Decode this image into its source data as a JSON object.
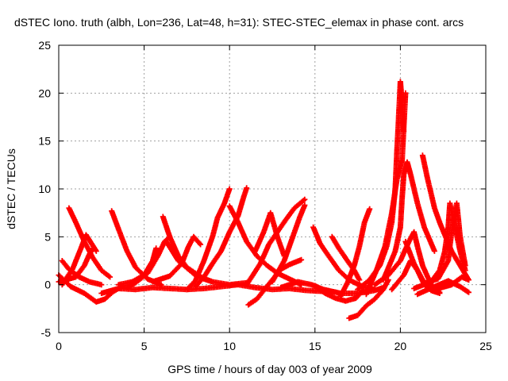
{
  "chart_data": {
    "type": "scatter",
    "title": "dSTEC Iono. truth (albh, Lon=236, Lat=48, h=31): STEC-STEC_elemax in phase cont. arcs",
    "xlabel": "GPS time / hours of day 003 of year 2009",
    "ylabel": "dSTEC  / TECUs",
    "xlim": [
      0,
      25
    ],
    "ylim": [
      -5,
      25
    ],
    "x_ticks": [
      "0",
      "5",
      "10",
      "15",
      "20",
      "25"
    ],
    "y_ticks": [
      "-5",
      "0",
      "5",
      "10",
      "15",
      "20",
      "25"
    ],
    "grid": true,
    "legend": "none",
    "marker": "+",
    "color": "#ff0000",
    "series": [
      {
        "points": [
          [
            0.6,
            8.0
          ],
          [
            1.0,
            6.5
          ],
          [
            1.5,
            4.5
          ],
          [
            2.0,
            2.8
          ],
          [
            2.5,
            1.5
          ],
          [
            3.0,
            0.8
          ]
        ]
      },
      {
        "points": [
          [
            0.0,
            1.0
          ],
          [
            0.7,
            -0.2
          ],
          [
            1.5,
            -0.9
          ],
          [
            2.2,
            -1.8
          ],
          [
            2.7,
            -1.5
          ],
          [
            3.2,
            -0.7
          ],
          [
            3.8,
            -0.1
          ]
        ]
      },
      {
        "points": [
          [
            0.2,
            2.5
          ],
          [
            0.6,
            1.6
          ],
          [
            1.2,
            0.8
          ],
          [
            1.8,
            0.3
          ],
          [
            2.5,
            0.0
          ]
        ]
      },
      {
        "points": [
          [
            0.2,
            0.0
          ],
          [
            0.8,
            1.6
          ],
          [
            1.3,
            3.8
          ],
          [
            1.6,
            5.2
          ],
          [
            2.2,
            3.5
          ]
        ]
      },
      {
        "points": [
          [
            0.0,
            0.3
          ],
          [
            1.0,
            0.8
          ],
          [
            1.5,
            2.0
          ],
          [
            1.8,
            3.2
          ],
          [
            2.0,
            3.8
          ]
        ]
      },
      {
        "points": [
          [
            3.1,
            7.7
          ],
          [
            3.5,
            5.8
          ],
          [
            4.0,
            3.5
          ],
          [
            4.5,
            1.8
          ],
          [
            5.2,
            0.6
          ],
          [
            6.0,
            0.0
          ]
        ]
      },
      {
        "points": [
          [
            2.5,
            -0.9
          ],
          [
            3.5,
            -0.4
          ],
          [
            4.5,
            -0.5
          ],
          [
            5.5,
            -0.3
          ],
          [
            6.5,
            -0.4
          ],
          [
            7.5,
            -0.5
          ],
          [
            8.5,
            -0.4
          ],
          [
            9.5,
            -0.2
          ],
          [
            10.5,
            0.0
          ],
          [
            11.5,
            -0.3
          ],
          [
            12.5,
            -0.5
          ],
          [
            13.5,
            -0.4
          ],
          [
            14.5,
            -0.6
          ],
          [
            15.5,
            -0.7
          ]
        ]
      },
      {
        "points": [
          [
            3.5,
            0.0
          ],
          [
            4.3,
            0.3
          ],
          [
            5.0,
            1.0
          ],
          [
            5.5,
            2.5
          ],
          [
            5.7,
            3.8
          ]
        ]
      },
      {
        "points": [
          [
            4.0,
            -0.3
          ],
          [
            4.5,
            0.2
          ],
          [
            5.2,
            1.2
          ],
          [
            5.8,
            3.0
          ],
          [
            6.2,
            4.5
          ],
          [
            6.5,
            5.0
          ]
        ]
      },
      {
        "points": [
          [
            6.1,
            7.1
          ],
          [
            6.5,
            5.0
          ],
          [
            7.0,
            3.0
          ],
          [
            7.5,
            1.8
          ],
          [
            8.0,
            1.2
          ],
          [
            8.5,
            0.6
          ],
          [
            9.0,
            0.3
          ]
        ]
      },
      {
        "points": [
          [
            5.5,
            0.3
          ],
          [
            6.5,
            0.9
          ],
          [
            7.2,
            2.2
          ],
          [
            7.6,
            4.0
          ],
          [
            7.9,
            5.0
          ],
          [
            8.3,
            4.2
          ]
        ]
      },
      {
        "points": [
          [
            6.3,
            4.5
          ],
          [
            7.0,
            2.5
          ],
          [
            8.0,
            1.0
          ],
          [
            9.0,
            0.3
          ],
          [
            10.0,
            0.0
          ],
          [
            11.0,
            0.2
          ]
        ]
      },
      {
        "points": [
          [
            7.5,
            -0.5
          ],
          [
            8.0,
            0.4
          ],
          [
            8.5,
            2.5
          ],
          [
            9.0,
            5.0
          ],
          [
            9.3,
            7.0
          ],
          [
            9.7,
            8.5
          ],
          [
            10.0,
            10.0
          ]
        ]
      },
      {
        "points": [
          [
            8.0,
            -0.2
          ],
          [
            8.5,
            0.8
          ],
          [
            9.0,
            2.2
          ],
          [
            9.5,
            3.5
          ],
          [
            10.0,
            5.5
          ],
          [
            10.5,
            7.2
          ],
          [
            10.8,
            9.0
          ],
          [
            11.0,
            10.1
          ]
        ]
      },
      {
        "points": [
          [
            10.0,
            8.2
          ],
          [
            10.5,
            6.5
          ],
          [
            11.0,
            4.5
          ],
          [
            11.6,
            3.0
          ],
          [
            12.2,
            2.0
          ],
          [
            12.8,
            1.2
          ],
          [
            13.5,
            0.6
          ],
          [
            14.2,
            0.0
          ]
        ]
      },
      {
        "points": [
          [
            11.1,
            -2.1
          ],
          [
            11.6,
            -1.5
          ],
          [
            12.0,
            -0.6
          ],
          [
            12.5,
            0.5
          ],
          [
            13.0,
            1.6
          ],
          [
            13.5,
            2.1
          ],
          [
            14.2,
            2.6
          ]
        ]
      },
      {
        "points": [
          [
            11.0,
            0.0
          ],
          [
            11.8,
            2.2
          ],
          [
            12.3,
            4.2
          ],
          [
            12.8,
            5.5
          ],
          [
            13.3,
            6.8
          ],
          [
            13.8,
            8.0
          ],
          [
            14.4,
            8.9
          ]
        ]
      },
      {
        "points": [
          [
            11.5,
            3.5
          ],
          [
            12.0,
            5.5
          ],
          [
            12.4,
            7.5
          ],
          [
            12.8,
            5.0
          ],
          [
            13.2,
            3.0
          ]
        ]
      },
      {
        "points": [
          [
            12.5,
            0.3
          ],
          [
            13.2,
            2.5
          ],
          [
            13.7,
            5.0
          ],
          [
            14.1,
            7.0
          ],
          [
            14.4,
            8.3
          ]
        ]
      },
      {
        "points": [
          [
            13.0,
            -0.3
          ],
          [
            14.0,
            0.3
          ],
          [
            14.8,
            0.0
          ],
          [
            15.5,
            -0.5
          ],
          [
            16.5,
            -0.9
          ],
          [
            17.5,
            -0.9
          ],
          [
            18.5,
            -0.6
          ],
          [
            19.0,
            -0.3
          ]
        ]
      },
      {
        "points": [
          [
            14.9,
            6.0
          ],
          [
            15.3,
            4.3
          ],
          [
            15.8,
            3.0
          ],
          [
            16.4,
            1.5
          ],
          [
            17.0,
            0.5
          ],
          [
            17.8,
            -0.2
          ],
          [
            18.5,
            -0.5
          ]
        ]
      },
      {
        "points": [
          [
            15.0,
            -0.1
          ],
          [
            15.6,
            -0.9
          ],
          [
            16.2,
            -1.4
          ],
          [
            16.8,
            -1.7
          ],
          [
            17.4,
            -1.4
          ],
          [
            17.8,
            -0.6
          ]
        ]
      },
      {
        "points": [
          [
            16.0,
            5.0
          ],
          [
            16.4,
            3.8
          ],
          [
            16.9,
            2.5
          ],
          [
            17.3,
            1.5
          ],
          [
            17.6,
            0.5
          ]
        ]
      },
      {
        "points": [
          [
            16.5,
            -1.2
          ],
          [
            16.9,
            0.2
          ],
          [
            17.3,
            2.0
          ],
          [
            17.6,
            4.0
          ],
          [
            17.9,
            6.5
          ],
          [
            18.2,
            7.9
          ]
        ]
      },
      {
        "points": [
          [
            17.0,
            -3.5
          ],
          [
            17.5,
            -3.2
          ],
          [
            18.0,
            -2.2
          ],
          [
            18.5,
            -1.5
          ],
          [
            19.0,
            -0.5
          ],
          [
            19.3,
            0.5
          ]
        ]
      },
      {
        "points": [
          [
            17.5,
            -0.5
          ],
          [
            18.2,
            0.5
          ],
          [
            18.8,
            2.0
          ],
          [
            19.2,
            4.0
          ],
          [
            19.5,
            6.5
          ],
          [
            19.7,
            10.0
          ],
          [
            19.8,
            14.0
          ],
          [
            19.9,
            17.5
          ],
          [
            20.0,
            21.2
          ],
          [
            20.1,
            19.0
          ],
          [
            20.2,
            16.0
          ]
        ]
      },
      {
        "points": [
          [
            18.0,
            -1.0
          ],
          [
            18.6,
            1.5
          ],
          [
            19.1,
            4.0
          ],
          [
            19.5,
            7.5
          ],
          [
            19.8,
            11.0
          ],
          [
            20.1,
            13.0
          ],
          [
            20.3,
            20.0
          ]
        ]
      },
      {
        "points": [
          [
            19.0,
            0.5
          ],
          [
            19.7,
            3.5
          ],
          [
            20.0,
            6.0
          ],
          [
            20.1,
            9.0
          ],
          [
            20.2,
            11.5
          ],
          [
            20.4,
            12.8
          ],
          [
            20.6,
            11.5
          ],
          [
            21.0,
            8.5
          ],
          [
            21.4,
            6.0
          ],
          [
            22.0,
            3.5
          ]
        ]
      },
      {
        "points": [
          [
            18.5,
            0.0
          ],
          [
            19.3,
            1.0
          ],
          [
            20.0,
            2.5
          ],
          [
            20.5,
            4.5
          ],
          [
            20.8,
            5.5
          ],
          [
            21.0,
            4.0
          ],
          [
            21.3,
            2.0
          ],
          [
            21.8,
            0.0
          ],
          [
            22.3,
            -0.8
          ]
        ]
      },
      {
        "points": [
          [
            19.5,
            -0.5
          ],
          [
            20.2,
            1.0
          ],
          [
            20.6,
            2.5
          ],
          [
            21.0,
            1.5
          ],
          [
            21.4,
            0.0
          ],
          [
            21.8,
            -0.5
          ]
        ]
      },
      {
        "points": [
          [
            20.3,
            4.5
          ],
          [
            20.8,
            2.2
          ],
          [
            21.3,
            0.5
          ],
          [
            21.8,
            -0.6
          ],
          [
            22.3,
            -0.9
          ]
        ]
      },
      {
        "points": [
          [
            21.3,
            13.5
          ],
          [
            21.6,
            11.0
          ],
          [
            22.0,
            8.0
          ],
          [
            22.3,
            6.5
          ],
          [
            22.6,
            5.2
          ],
          [
            23.0,
            3.5
          ],
          [
            23.5,
            2.0
          ],
          [
            24.0,
            0.5
          ]
        ]
      },
      {
        "points": [
          [
            20.8,
            -0.4
          ],
          [
            21.8,
            0.3
          ],
          [
            22.3,
            1.5
          ],
          [
            22.6,
            3.5
          ],
          [
            22.8,
            6.0
          ],
          [
            22.9,
            8.5
          ],
          [
            23.2,
            6.0
          ],
          [
            23.5,
            3.5
          ],
          [
            23.8,
            1.5
          ]
        ]
      },
      {
        "points": [
          [
            21.5,
            0.2
          ],
          [
            22.2,
            0.6
          ],
          [
            22.8,
            2.5
          ],
          [
            23.0,
            5.5
          ],
          [
            23.3,
            8.5
          ],
          [
            23.5,
            5.0
          ],
          [
            23.8,
            2.0
          ]
        ]
      },
      {
        "points": [
          [
            21.0,
            -1.0
          ],
          [
            22.0,
            -0.2
          ],
          [
            22.8,
            0.4
          ],
          [
            23.5,
            -0.2
          ],
          [
            24.0,
            -0.8
          ]
        ]
      },
      {
        "points": [
          [
            22.0,
            -0.5
          ],
          [
            23.0,
            0.0
          ],
          [
            23.6,
            0.8
          ],
          [
            24.0,
            0.5
          ]
        ]
      }
    ]
  }
}
